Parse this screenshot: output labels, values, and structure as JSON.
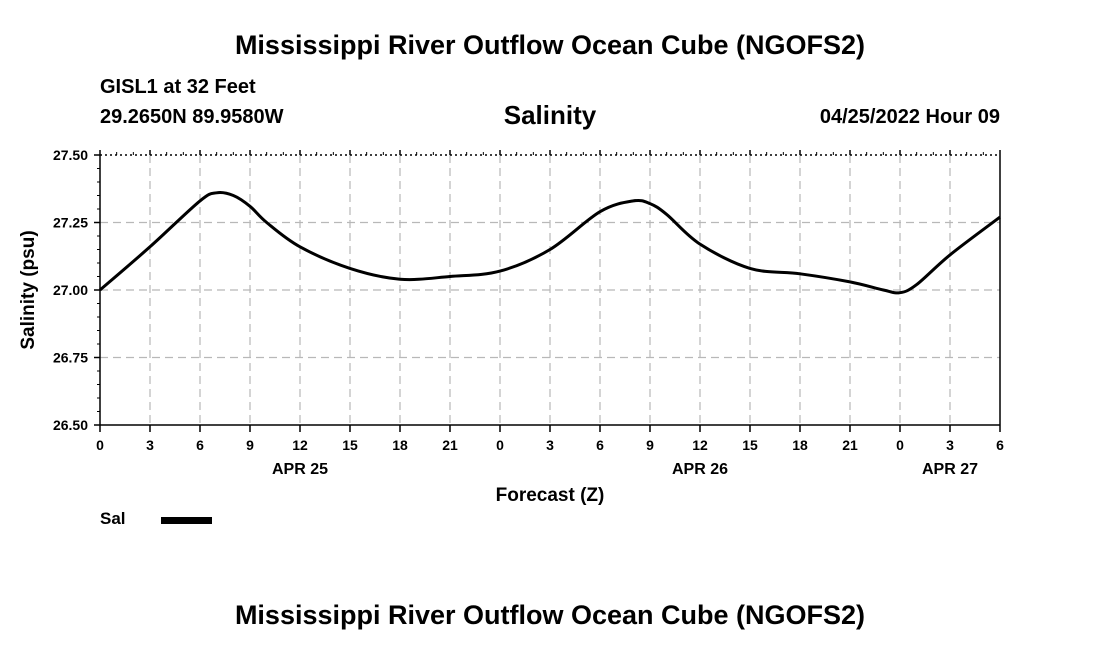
{
  "header": {
    "title": "Mississippi River Outflow Ocean Cube (NGOFS2)",
    "station": "GISL1 at 32 Feet",
    "coordinates": "29.2650N  89.9580W",
    "subtitle": "Salinity",
    "datetime": "04/25/2022 Hour 09"
  },
  "footer": {
    "title": "Mississippi River Outflow Ocean Cube (NGOFS2)"
  },
  "legend": {
    "label": "Sal"
  },
  "chart_data": {
    "type": "line",
    "title": "Salinity",
    "xlabel": "Forecast (Z)",
    "ylabel": "Salinity (psu)",
    "xlim": [
      0,
      54
    ],
    "ylim": [
      26.5,
      27.5
    ],
    "y_ticks": [
      "27.50",
      "27.25",
      "27.00",
      "26.75",
      "26.50"
    ],
    "x_tick_labels": [
      "0",
      "3",
      "6",
      "9",
      "12",
      "15",
      "18",
      "21",
      "0",
      "3",
      "6",
      "9",
      "12",
      "15",
      "18",
      "21",
      "0",
      "3",
      "6"
    ],
    "date_labels": [
      {
        "label": "APR 25",
        "hour": 12
      },
      {
        "label": "APR 26",
        "hour": 36
      },
      {
        "label": "APR 27",
        "hour": 51
      }
    ],
    "grid": true,
    "legend_position": "bottom-left",
    "series": [
      {
        "name": "Sal",
        "color": "#000000",
        "x": [
          0,
          3,
          6,
          7,
          8,
          9,
          10,
          12,
          15,
          18,
          21,
          24,
          27,
          30,
          32,
          33,
          34,
          36,
          39,
          42,
          45,
          47,
          48,
          49,
          51,
          54
        ],
        "y": [
          27.0,
          27.16,
          27.33,
          27.36,
          27.35,
          27.31,
          27.25,
          27.16,
          27.08,
          27.04,
          27.05,
          27.07,
          27.15,
          27.29,
          27.33,
          27.32,
          27.28,
          27.17,
          27.08,
          27.06,
          27.03,
          27.0,
          26.99,
          27.02,
          27.13,
          27.27
        ]
      }
    ]
  }
}
